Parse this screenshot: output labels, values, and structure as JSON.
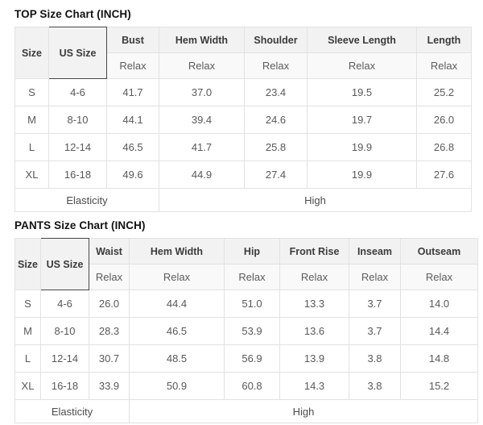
{
  "colors": {
    "dark_header_bg": "#474747",
    "dark_header_text": "#ffffff",
    "header_bg": "#f2f2f2",
    "subheader_bg": "#f9f9f9",
    "border": "#e2e2e2",
    "title_text": "#121212",
    "cell_text": "#595959"
  },
  "top_chart": {
    "title": "TOP Size Chart (INCH)",
    "size_header": "Size",
    "us_size_header": "US Size",
    "columns": [
      {
        "label": "Bust",
        "sub": "Relax"
      },
      {
        "label": "Hem Width",
        "sub": "Relax"
      },
      {
        "label": "Shoulder",
        "sub": "Relax"
      },
      {
        "label": "Sleeve Length",
        "sub": "Relax"
      },
      {
        "label": "Length",
        "sub": "Relax"
      }
    ],
    "rows": [
      {
        "size": "S",
        "us_size": "4-6",
        "values": [
          "41.7",
          "37.0",
          "23.4",
          "19.5",
          "25.2"
        ]
      },
      {
        "size": "M",
        "us_size": "8-10",
        "values": [
          "44.1",
          "39.4",
          "24.6",
          "19.7",
          "26.0"
        ]
      },
      {
        "size": "L",
        "us_size": "12-14",
        "values": [
          "46.5",
          "41.7",
          "25.8",
          "19.9",
          "26.8"
        ]
      },
      {
        "size": "XL",
        "us_size": "16-18",
        "values": [
          "49.6",
          "44.9",
          "27.4",
          "19.9",
          "27.6"
        ]
      }
    ],
    "footer": {
      "label": "Elasticity",
      "value": "High"
    }
  },
  "pants_chart": {
    "title": "PANTS Size Chart (INCH)",
    "size_header": "Size",
    "us_size_header": "US Size",
    "columns": [
      {
        "label": "Waist",
        "sub": "Relax"
      },
      {
        "label": "Hem Width",
        "sub": "Relax"
      },
      {
        "label": "Hip",
        "sub": "Relax"
      },
      {
        "label": "Front Rise",
        "sub": "Relax"
      },
      {
        "label": "Inseam",
        "sub": "Relax"
      },
      {
        "label": "Outseam",
        "sub": "Relax"
      }
    ],
    "rows": [
      {
        "size": "S",
        "us_size": "4-6",
        "values": [
          "26.0",
          "44.4",
          "51.0",
          "13.3",
          "3.7",
          "14.0"
        ]
      },
      {
        "size": "M",
        "us_size": "8-10",
        "values": [
          "28.3",
          "46.5",
          "53.9",
          "13.6",
          "3.7",
          "14.4"
        ]
      },
      {
        "size": "L",
        "us_size": "12-14",
        "values": [
          "30.7",
          "48.5",
          "56.9",
          "13.9",
          "3.8",
          "14.8"
        ]
      },
      {
        "size": "XL",
        "us_size": "16-18",
        "values": [
          "33.9",
          "50.9",
          "60.8",
          "14.3",
          "3.8",
          "15.2"
        ]
      }
    ],
    "footer": {
      "label": "Elasticity",
      "value": "High"
    }
  }
}
